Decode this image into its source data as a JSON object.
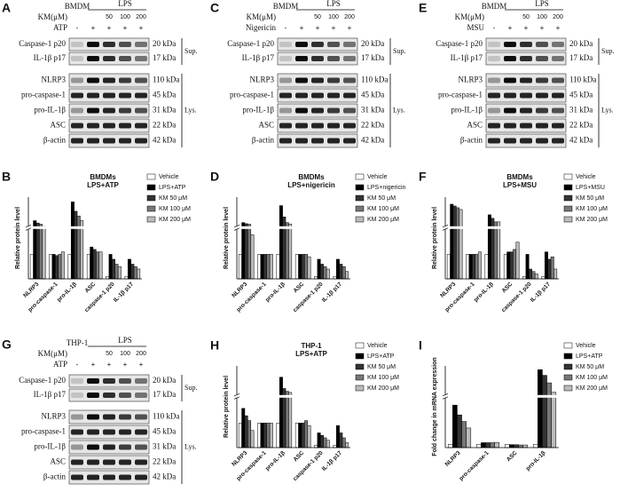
{
  "blots": [
    {
      "label": "A",
      "cell": "BMDM",
      "stimulus": "LPS",
      "km_label": "KM(μM)",
      "doses": [
        "50",
        "100",
        "200"
      ],
      "treatment": "ATP",
      "signs": [
        "-",
        "+",
        "+",
        "+",
        "+"
      ],
      "groups": [
        {
          "name": "Sup.",
          "rows": [
            {
              "protein": "Caspase-1 p20",
              "size": "20 kDa"
            },
            {
              "protein": "IL-1β p17",
              "size": "17 kDa"
            }
          ]
        },
        {
          "name": "Lys.",
          "rows": [
            {
              "protein": "NLRP3",
              "size": "110 kDa"
            },
            {
              "protein": "pro-caspase-1",
              "size": "45 kDa"
            },
            {
              "protein": "pro-IL-1β",
              "size": "31 kDa"
            },
            {
              "protein": "ASC",
              "size": "22 kDa"
            },
            {
              "protein": "β-actin",
              "size": "42 kDa"
            }
          ]
        }
      ]
    },
    {
      "label": "C",
      "cell": "BMDM",
      "stimulus": "LPS",
      "km_label": "KM(μM)",
      "doses": [
        "50",
        "100",
        "200"
      ],
      "treatment": "Nigericin",
      "signs": [
        "-",
        "+",
        "+",
        "+",
        "+"
      ],
      "groups": [
        {
          "name": "Sup.",
          "rows": [
            {
              "protein": "Caspase-1 p20",
              "size": "20 kDa"
            },
            {
              "protein": "IL-1β p17",
              "size": "17 kDa"
            }
          ]
        },
        {
          "name": "Lys.",
          "rows": [
            {
              "protein": "NLRP3",
              "size": "110 kDa"
            },
            {
              "protein": "pro-caspase-1",
              "size": "45 kDa"
            },
            {
              "protein": "pro-IL-1β",
              "size": "31 kDa"
            },
            {
              "protein": "ASC",
              "size": "22 kDa"
            },
            {
              "protein": "β-actin",
              "size": "42 kDa"
            }
          ]
        }
      ]
    },
    {
      "label": "E",
      "cell": "BMDM",
      "stimulus": "LPS",
      "km_label": "KM(μM)",
      "doses": [
        "50",
        "100",
        "200"
      ],
      "treatment": "MSU",
      "signs": [
        "-",
        "+",
        "+",
        "+",
        "+"
      ],
      "groups": [
        {
          "name": "Sup.",
          "rows": [
            {
              "protein": "Caspase-1 p20",
              "size": "20 kDa"
            },
            {
              "protein": "IL-1β p17",
              "size": "17 kDa"
            }
          ]
        },
        {
          "name": "Lys.",
          "rows": [
            {
              "protein": "NLRP3",
              "size": "110 kDa"
            },
            {
              "protein": "pro-caspase-1",
              "size": "45 kDa"
            },
            {
              "protein": "pro-IL-1β",
              "size": "31 kDa"
            },
            {
              "protein": "ASC",
              "size": "22 kDa"
            },
            {
              "protein": "β-actin",
              "size": "42 kDa"
            }
          ]
        }
      ]
    },
    {
      "label": "G",
      "cell": "THP-1",
      "stimulus": "LPS",
      "km_label": "KM(μM)",
      "doses": [
        "50",
        "100",
        "200"
      ],
      "treatment": "ATP",
      "signs": [
        "-",
        "+",
        "+",
        "+",
        "+"
      ],
      "groups": [
        {
          "name": "Sup.",
          "rows": [
            {
              "protein": "Caspase-1 p20",
              "size": "20 kDa"
            },
            {
              "protein": "IL-1β p17",
              "size": "17 kDa"
            }
          ]
        },
        {
          "name": "Lys.",
          "rows": [
            {
              "protein": "NLRP3",
              "size": "110 kDa"
            },
            {
              "protein": "pro-caspase-1",
              "size": "45 kDa"
            },
            {
              "protein": "pro-IL-1β",
              "size": "31 kDa"
            },
            {
              "protein": "ASC",
              "size": "22 kDa"
            },
            {
              "protein": "β-actin",
              "size": "42 kDa"
            }
          ]
        }
      ]
    }
  ],
  "chart_data": [
    {
      "label": "B",
      "type": "bar",
      "title": "BMDMs",
      "subtitle": "LPS+ATP",
      "ylabel": "Relative protein level",
      "ylim": [
        0,
        16
      ],
      "ybreak": [
        2,
        4
      ],
      "categories": [
        "NLRP3",
        "pro-caspase-1",
        "pro-IL-1β",
        "ASC",
        "caspase-1 p20",
        "IL-1β p17"
      ],
      "series": [
        {
          "name": "Vehicle",
          "color": "#ffffff",
          "values": [
            1,
            1,
            1,
            1,
            0.1,
            0.1
          ]
        },
        {
          "name": "LPS+ATP",
          "color": "#000000",
          "values": [
            6,
            1,
            14,
            1.3,
            1.0,
            0.8
          ]
        },
        {
          "name": "KM 50 μM",
          "color": "#333333",
          "values": [
            5,
            0.95,
            10,
            1.2,
            0.8,
            0.6
          ]
        },
        {
          "name": "KM 100 μM",
          "color": "#777777",
          "values": [
            4.5,
            1,
            8,
            1.1,
            0.6,
            0.5
          ]
        },
        {
          "name": "KM 200 μM",
          "color": "#bbbbbb",
          "values": [
            3.5,
            1.1,
            6,
            1.1,
            0.5,
            0.4
          ]
        }
      ]
    },
    {
      "label": "D",
      "type": "bar",
      "title": "BMDMs",
      "subtitle": "LPS+nigericin",
      "ylabel": "Relative protein level",
      "ylim": [
        0,
        14
      ],
      "ybreak": [
        2,
        4
      ],
      "categories": [
        "NLRP3",
        "pro-caspase-1",
        "pro-IL-1β",
        "ASC",
        "caspase-1 p20",
        "IL-1β p17"
      ],
      "series": [
        {
          "name": "Vehicle",
          "color": "#ffffff",
          "values": [
            1,
            1,
            1,
            1,
            0.1,
            0.1
          ]
        },
        {
          "name": "LPS+nigericin",
          "color": "#000000",
          "values": [
            5,
            1,
            11,
            1,
            0.8,
            0.8
          ]
        },
        {
          "name": "KM 50 μM",
          "color": "#333333",
          "values": [
            4.6,
            1,
            7,
            1,
            0.6,
            0.6
          ]
        },
        {
          "name": "KM 100 μM",
          "color": "#777777",
          "values": [
            4.4,
            1,
            5,
            1,
            0.5,
            0.5
          ]
        },
        {
          "name": "KM 200 μM",
          "color": "#bbbbbb",
          "values": [
            1.8,
            1,
            4.5,
            0.9,
            0.4,
            0.3
          ]
        }
      ]
    },
    {
      "label": "F",
      "type": "bar",
      "title": "BMDMs",
      "subtitle": "LPS+MSU",
      "ylabel": "Relative protein level",
      "ylim": [
        0,
        12
      ],
      "ybreak": [
        2,
        4
      ],
      "categories": [
        "NLRP3",
        "pro-caspase-1",
        "pro-IL-1β",
        "ASC",
        "caspase-1 p20",
        "IL-1β p17"
      ],
      "series": [
        {
          "name": "Vehicle",
          "color": "#ffffff",
          "values": [
            1,
            1,
            1,
            1,
            0.1,
            0.1
          ]
        },
        {
          "name": "LPS+MSU",
          "color": "#000000",
          "values": [
            10,
            1,
            7,
            1.1,
            1.0,
            1.1
          ]
        },
        {
          "name": "KM 50 μM",
          "color": "#333333",
          "values": [
            9.5,
            1,
            6,
            1.1,
            0.4,
            0.8
          ]
        },
        {
          "name": "KM 100 μM",
          "color": "#777777",
          "values": [
            9,
            1,
            5,
            1.2,
            0.3,
            0.9
          ]
        },
        {
          "name": "KM 200 μM",
          "color": "#bbbbbb",
          "values": [
            8.5,
            1.1,
            5,
            1.5,
            0.2,
            0.4
          ]
        }
      ]
    },
    {
      "label": "H",
      "type": "bar",
      "title": "THP-1",
      "subtitle": "LPS+ATP",
      "ylabel": "Relative protein level",
      "ylim": [
        0,
        9
      ],
      "ybreak": [
        2,
        4
      ],
      "categories": [
        "NLRP3",
        "pro-caspase-1",
        "pro-IL-1β",
        "ASC",
        "caspase-1 p20",
        "IL-1β p17"
      ],
      "series": [
        {
          "name": "Vehicle",
          "color": "#ffffff",
          "values": [
            1,
            1,
            1,
            1,
            0.1,
            0.1
          ]
        },
        {
          "name": "LPS+ATP",
          "color": "#000000",
          "values": [
            1.6,
            1,
            7,
            1,
            0.6,
            0.9
          ]
        },
        {
          "name": "KM 50 μM",
          "color": "#333333",
          "values": [
            1.3,
            1,
            5,
            1,
            0.5,
            0.6
          ]
        },
        {
          "name": "KM 100 μM",
          "color": "#777777",
          "values": [
            1.1,
            1,
            4.5,
            1.1,
            0.4,
            0.4
          ]
        },
        {
          "name": "KM 200 μM",
          "color": "#bbbbbb",
          "values": [
            0.7,
            1,
            4.3,
            0.9,
            0.3,
            0.2
          ]
        }
      ]
    },
    {
      "label": "I",
      "type": "bar",
      "ylabel": "Fold change in mRNA expression",
      "ylim": [
        0,
        200
      ],
      "ybreak": [
        15,
        50
      ],
      "categories": [
        "NLRP3",
        "pro-caspase-1",
        "ASC",
        "pro-IL-1β"
      ],
      "series": [
        {
          "name": "Vehicle",
          "color": "#ffffff",
          "values": [
            1,
            1,
            1,
            1
          ]
        },
        {
          "name": "LPS+ATP",
          "color": "#000000",
          "values": [
            13,
            1.5,
            0.9,
            180
          ]
        },
        {
          "name": "KM 50 μM",
          "color": "#333333",
          "values": [
            10,
            1.5,
            0.9,
            150
          ]
        },
        {
          "name": "KM 100 μM",
          "color": "#777777",
          "values": [
            8,
            1.5,
            0.8,
            110
          ]
        },
        {
          "name": "KM 200 μM",
          "color": "#bbbbbb",
          "values": [
            6,
            1.6,
            0.8,
            60
          ]
        }
      ]
    }
  ]
}
